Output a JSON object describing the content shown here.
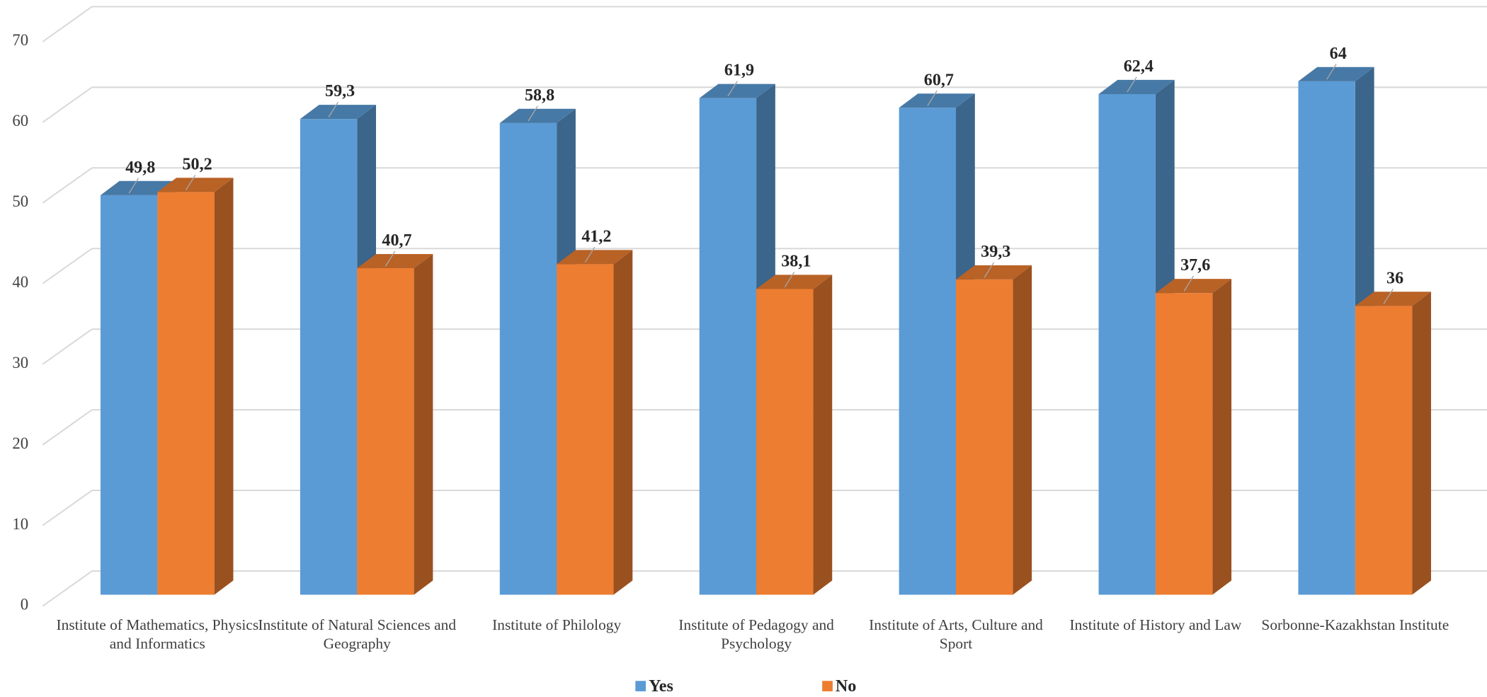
{
  "chart_data": {
    "type": "bar3d",
    "categories": [
      "Institute of Mathematics, Physics and Informatics",
      "Institute of Natural Sciences and Geography",
      "Institute of Philology",
      "Institute of Pedagogy and Psychology",
      "Institute of Arts, Culture and Sport",
      "Institute of History and Law",
      "Sorbonne-Kazakhstan Institute"
    ],
    "series": [
      {
        "name": "Yes",
        "color": "#5b9bd5",
        "values": [
          49.8,
          59.3,
          58.8,
          61.9,
          60.7,
          62.4,
          64
        ],
        "value_labels": [
          "49,8",
          "59,3",
          "58,8",
          "61,9",
          "60,7",
          "62,4",
          "64"
        ]
      },
      {
        "name": "No",
        "color": "#ed7d31",
        "values": [
          50.2,
          40.7,
          41.2,
          38.1,
          39.3,
          37.6,
          36
        ],
        "value_labels": [
          "50,2",
          "40,7",
          "41,2",
          "38,1",
          "39,3",
          "37,6",
          "36"
        ]
      }
    ],
    "ylim": [
      0,
      70
    ],
    "yticks": [
      0,
      10,
      20,
      30,
      40,
      50,
      60,
      70
    ],
    "grid": true,
    "legend": "bottom"
  }
}
